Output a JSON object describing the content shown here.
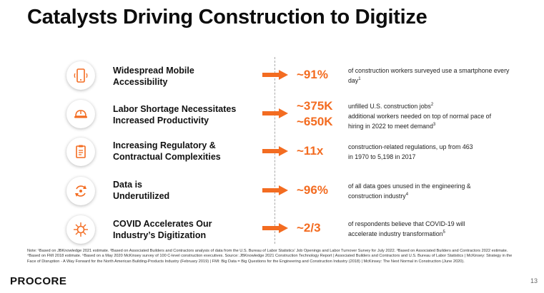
{
  "title": "Catalysts Driving Construction to Digitize",
  "colors": {
    "accent": "#f36c21",
    "text": "#111111"
  },
  "rows": [
    {
      "icon": "smartphone-icon",
      "label": "Widespread Mobile\nAccessibility",
      "stats": [
        "~91%"
      ],
      "descs": [
        "of construction workers surveyed use a smartphone every day"
      ],
      "sups": [
        "1"
      ]
    },
    {
      "icon": "hard-hat-icon",
      "label": "Labor Shortage Necessitates\nIncreased Productivity",
      "stats": [
        "~375K",
        "~650K"
      ],
      "descs": [
        "unfilled U.S. construction jobs",
        "additional workers needed on top of normal pace of hiring in 2022 to meet demand"
      ],
      "sups": [
        "2",
        "3"
      ]
    },
    {
      "icon": "clipboard-icon",
      "label": "Increasing Regulatory &\nContractual Complexities",
      "stats": [
        "~11x"
      ],
      "descs": [
        "construction-related regulations, up from 463 in 1970 to 5,198 in 2017"
      ],
      "sups": [
        ""
      ]
    },
    {
      "icon": "data-cycle-icon",
      "label": "Data is\nUnderutilized",
      "stats": [
        "~96%"
      ],
      "descs": [
        "of all data goes unused in the engineering & construction industry"
      ],
      "sups": [
        "4"
      ]
    },
    {
      "icon": "virus-icon",
      "label": "COVID Accelerates Our\nIndustry’s Digitization",
      "stats": [
        "~2/3"
      ],
      "descs": [
        "of respondents believe that COVID-19 will accelerate industry transformation"
      ],
      "sups": [
        "5"
      ]
    }
  ],
  "note": "Note: ¹Based on JBKnowledge 2021 estimate. ²Based on Associated Builders and Contractors analysis of data from the U.S. Bureau of Labor Statistics’ Job Openings and Labor Turnover Survey for July 2022. ³Based on Associated Builders and Contractors 2022 estimate. ⁴Based on FMI 2018 estimate. ⁵Based on a May 2020 McKinsey survey of 100 C-level construction executives. Source: JBKnowledge 2021 Construction Technology Report | Associated Builders and Contractors and U.S. Bureau of Labor Statistics | McKinsey: Strategy in the Face of Disruption - A Way Forward for the North American Building-Products Industry (February 2019) | FMI: Big Data = Big Questions for the Engineering and Construction Industry (2018) | McKinsey: The Next Normal in Construction (June 2020).",
  "logo": "PROCORE",
  "page_number": "13"
}
